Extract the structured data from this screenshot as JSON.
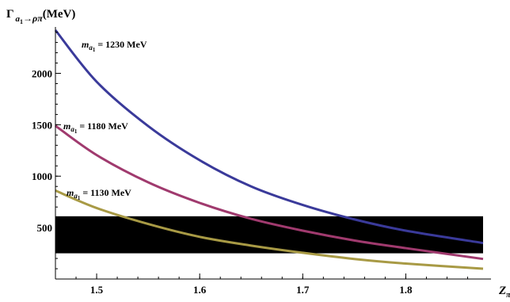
{
  "chart_data": {
    "type": "line",
    "ylabel_parts": {
      "main": "Γ",
      "sub": "a",
      "subsub": "1",
      "arrow": "→ρπ",
      "unit": "(MeV)"
    },
    "xlabel_parts": {
      "main": "Z",
      "sub": "π"
    },
    "xlim": [
      1.46,
      1.875
    ],
    "ylim": [
      0,
      2420
    ],
    "x_ticks": [
      1.5,
      1.6,
      1.7,
      1.8
    ],
    "x_tick_labels": [
      "1.5",
      "1.6",
      "1.7",
      "1.8"
    ],
    "y_ticks": [
      500,
      1000,
      1500,
      2000
    ],
    "y_tick_labels": [
      "500",
      "1000",
      "1500",
      "2000"
    ],
    "grid": false,
    "band": {
      "y_low": 250,
      "y_high": 610,
      "color": "#000000"
    },
    "series": [
      {
        "name": "m_a1 = 1230 MeV",
        "label_parts": {
          "m": "m",
          "sub": "a",
          "subsub": "1",
          "rest": " = 1230 MeV"
        },
        "color": "#3A3A9A",
        "x": [
          1.46,
          1.5,
          1.55,
          1.6,
          1.65,
          1.7,
          1.75,
          1.8,
          1.875
        ],
        "values": [
          2420,
          1918,
          1487,
          1155,
          900,
          720,
          580,
          470,
          350
        ]
      },
      {
        "name": "m_a1 = 1180 MeV",
        "label_parts": {
          "m": "m",
          "sub": "a",
          "subsub": "1",
          "rest": " = 1180 MeV"
        },
        "color": "#A03A6E",
        "x": [
          1.46,
          1.5,
          1.55,
          1.6,
          1.65,
          1.7,
          1.75,
          1.8,
          1.875
        ],
        "values": [
          1490,
          1205,
          940,
          740,
          585,
          470,
          375,
          300,
          195
        ]
      },
      {
        "name": "m_a1 = 1130 MeV",
        "label_parts": {
          "m": "m",
          "sub": "a",
          "subsub": "1",
          "rest": " = 1130 MeV"
        },
        "color": "#A89A45",
        "x": [
          1.46,
          1.5,
          1.55,
          1.6,
          1.65,
          1.7,
          1.75,
          1.8,
          1.875
        ],
        "values": [
          860,
          690,
          535,
          410,
          325,
          255,
          195,
          150,
          100
        ]
      }
    ]
  }
}
